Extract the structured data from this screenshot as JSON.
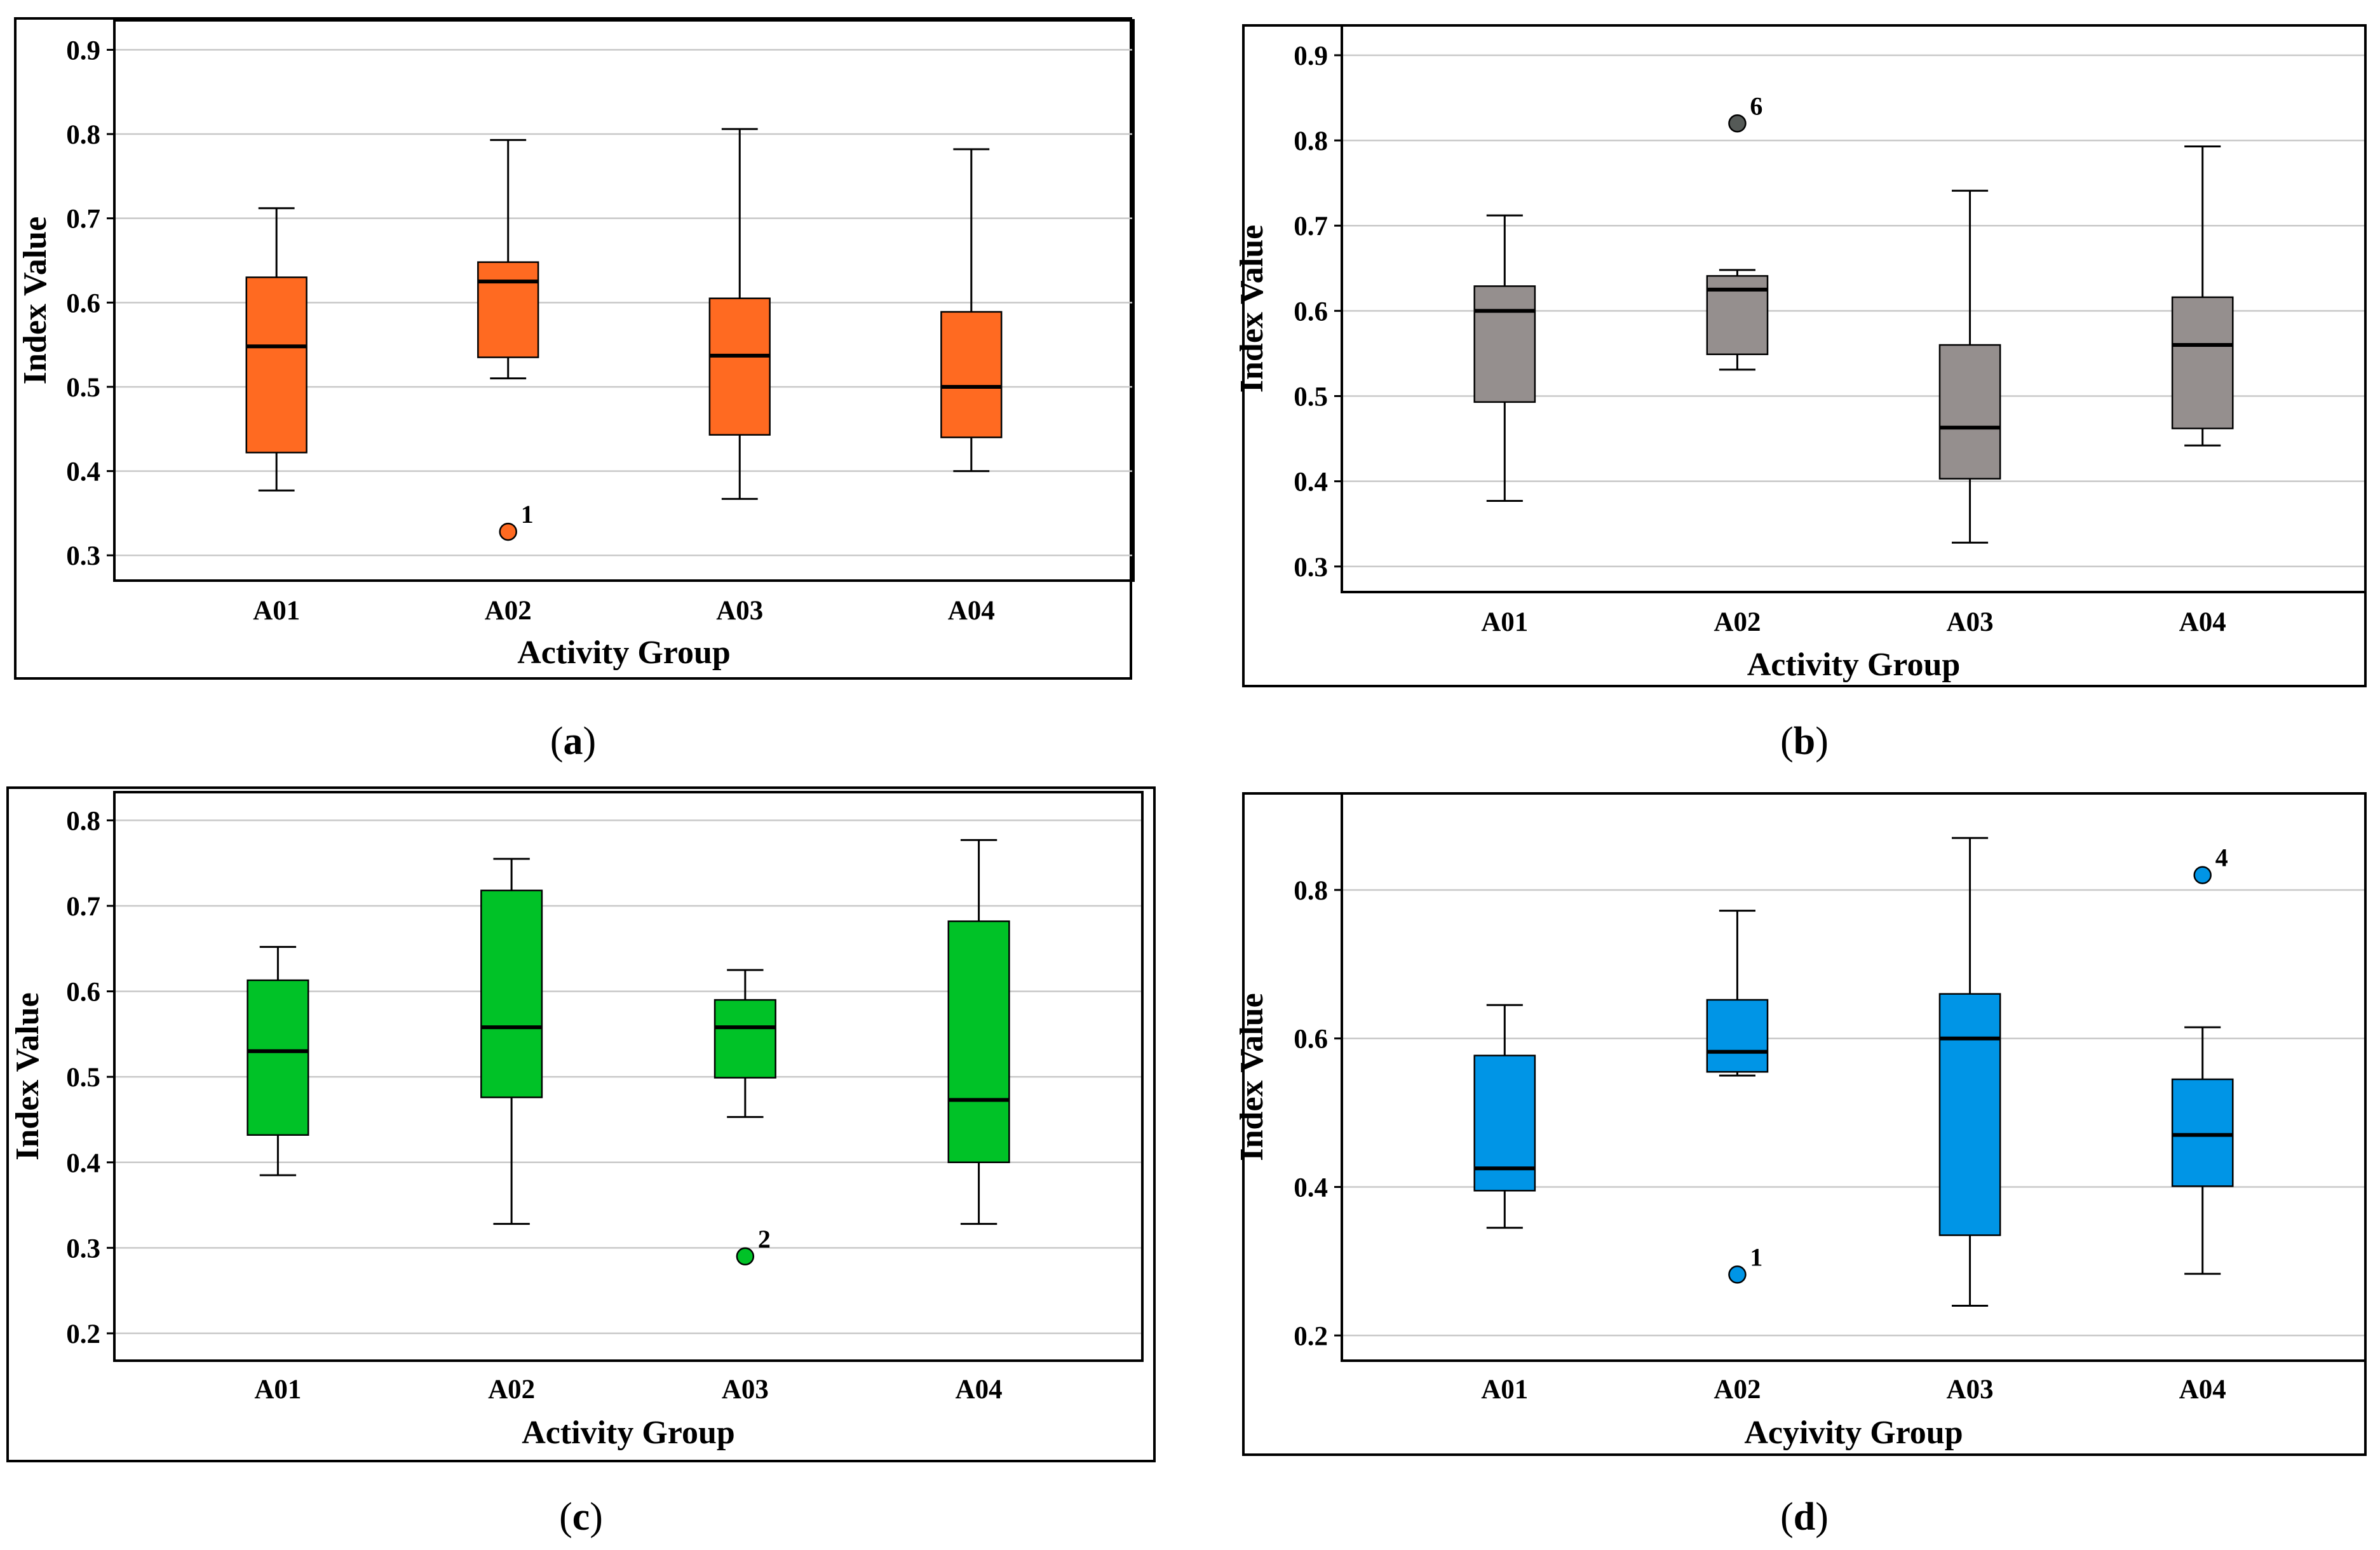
{
  "chart_data": [
    {
      "type": "box",
      "panel": "a",
      "caption_letter": "a",
      "xlabel": "Activity Group",
      "ylabel": "Index Value",
      "ylim": [
        0.27,
        0.935
      ],
      "yticks": [
        0.3,
        0.4,
        0.5,
        0.6,
        0.7,
        0.8,
        0.9
      ],
      "ytick_labels": [
        "0.3",
        "0.4",
        "0.5",
        "0.6",
        "0.7",
        "0.8",
        "0.9"
      ],
      "categories": [
        "A01",
        "A02",
        "A03",
        "A04"
      ],
      "color": "#FF6A21",
      "boxes": [
        {
          "whisker_low": 0.377,
          "q1": 0.422,
          "median": 0.548,
          "q3": 0.63,
          "whisker_high": 0.712
        },
        {
          "whisker_low": 0.51,
          "q1": 0.535,
          "median": 0.625,
          "q3": 0.648,
          "whisker_high": 0.793
        },
        {
          "whisker_low": 0.367,
          "q1": 0.443,
          "median": 0.537,
          "q3": 0.605,
          "whisker_high": 0.806
        },
        {
          "whisker_low": 0.4,
          "q1": 0.44,
          "median": 0.5,
          "q3": 0.589,
          "whisker_high": 0.782
        }
      ],
      "outliers": [
        {
          "category": "A02",
          "value": 0.328,
          "label": "1"
        }
      ]
    },
    {
      "type": "box",
      "panel": "b",
      "caption_letter": "b",
      "xlabel": "Activity Group",
      "ylabel": "Index Value",
      "ylim": [
        0.27,
        0.935
      ],
      "yticks": [
        0.3,
        0.4,
        0.5,
        0.6,
        0.7,
        0.8,
        0.9
      ],
      "ytick_labels": [
        "0.3",
        "0.4",
        "0.5",
        "0.6",
        "0.7",
        "0.8",
        "0.9"
      ],
      "categories": [
        "A01",
        "A02",
        "A03",
        "A04"
      ],
      "color": "#958F8E",
      "outlier_color": "#555A57",
      "boxes": [
        {
          "whisker_low": 0.377,
          "q1": 0.493,
          "median": 0.6,
          "q3": 0.629,
          "whisker_high": 0.712
        },
        {
          "whisker_low": 0.531,
          "q1": 0.549,
          "median": 0.625,
          "q3": 0.641,
          "whisker_high": 0.648
        },
        {
          "whisker_low": 0.328,
          "q1": 0.403,
          "median": 0.463,
          "q3": 0.56,
          "whisker_high": 0.741
        },
        {
          "whisker_low": 0.442,
          "q1": 0.462,
          "median": 0.56,
          "q3": 0.616,
          "whisker_high": 0.793
        }
      ],
      "outliers": [
        {
          "category": "A02",
          "value": 0.82,
          "label": "6"
        }
      ]
    },
    {
      "type": "box",
      "panel": "c",
      "caption_letter": "c",
      "xlabel": "Activity Group",
      "ylabel": "Index Value",
      "ylim": [
        0.168,
        0.833
      ],
      "yticks": [
        0.2,
        0.3,
        0.4,
        0.5,
        0.6,
        0.7,
        0.8
      ],
      "ytick_labels": [
        "0.2",
        "0.3",
        "0.4",
        "0.5",
        "0.6",
        "0.7",
        "0.8"
      ],
      "categories": [
        "A01",
        "A02",
        "A03",
        "A04"
      ],
      "color": "#00C227",
      "boxes": [
        {
          "whisker_low": 0.385,
          "q1": 0.432,
          "median": 0.53,
          "q3": 0.613,
          "whisker_high": 0.652
        },
        {
          "whisker_low": 0.328,
          "q1": 0.476,
          "median": 0.558,
          "q3": 0.718,
          "whisker_high": 0.755
        },
        {
          "whisker_low": 0.453,
          "q1": 0.499,
          "median": 0.558,
          "q3": 0.59,
          "whisker_high": 0.625
        },
        {
          "whisker_low": 0.328,
          "q1": 0.4,
          "median": 0.473,
          "q3": 0.682,
          "whisker_high": 0.777
        }
      ],
      "outliers": [
        {
          "category": "A03",
          "value": 0.29,
          "label": "2"
        }
      ]
    },
    {
      "type": "box",
      "panel": "d",
      "caption_letter": "d",
      "xlabel": "Acyivity Group",
      "ylabel": "Index Value",
      "ylim": [
        0.166,
        0.93
      ],
      "yticks": [
        0.2,
        0.4,
        0.6,
        0.8
      ],
      "ytick_labels": [
        "0.2",
        "0.4",
        "0.6",
        "0.8"
      ],
      "categories": [
        "A01",
        "A02",
        "A03",
        "A04"
      ],
      "color": "#0095E6",
      "boxes": [
        {
          "whisker_low": 0.345,
          "q1": 0.395,
          "median": 0.425,
          "q3": 0.577,
          "whisker_high": 0.645
        },
        {
          "whisker_low": 0.55,
          "q1": 0.555,
          "median": 0.582,
          "q3": 0.652,
          "whisker_high": 0.772
        },
        {
          "whisker_low": 0.24,
          "q1": 0.335,
          "median": 0.6,
          "q3": 0.66,
          "whisker_high": 0.87
        },
        {
          "whisker_low": 0.283,
          "q1": 0.401,
          "median": 0.47,
          "q3": 0.545,
          "whisker_high": 0.615
        }
      ],
      "outliers": [
        {
          "category": "A02",
          "value": 0.282,
          "label": "1"
        },
        {
          "category": "A04",
          "value": 0.82,
          "label": "4"
        }
      ]
    }
  ]
}
